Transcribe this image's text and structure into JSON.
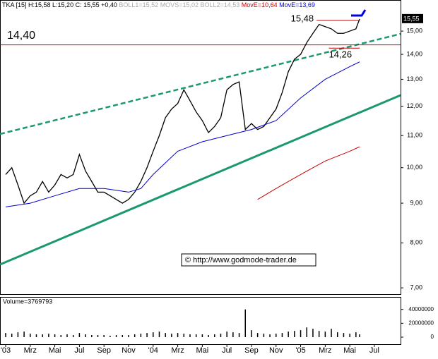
{
  "chart_data": {
    "type": "line",
    "header": {
      "symbol": "TKA [15] H:15,58 L:15,20 C: 15,55 +0,40",
      "boll": "BOLL1=15,52 MOVS=15,02 BOLL2=14,53",
      "move_red": "MovE=10,64",
      "move_blue": "MovE=13,69"
    },
    "last_price_label": "15,55",
    "watermark": "© http://www.godmode-trader.de",
    "log_scale": true,
    "xlim": [
      -0.46,
      32.13
    ],
    "xticks": [
      {
        "value": 0,
        "label": "'03"
      },
      {
        "value": 2,
        "label": "Mrz"
      },
      {
        "value": 4,
        "label": "Mai"
      },
      {
        "value": 6,
        "label": "Jul"
      },
      {
        "value": 8,
        "label": "Sep"
      },
      {
        "value": 10,
        "label": "Nov"
      },
      {
        "value": 12,
        "label": "'04"
      },
      {
        "value": 14,
        "label": "Mrz"
      },
      {
        "value": 16,
        "label": "Mai"
      },
      {
        "value": 18,
        "label": "Jul"
      },
      {
        "value": 20,
        "label": "Sep"
      },
      {
        "value": 22,
        "label": "Nov"
      },
      {
        "value": 24,
        "label": "'05"
      },
      {
        "value": 26,
        "label": "Mrz"
      },
      {
        "value": 28,
        "label": "Mai"
      },
      {
        "value": 30,
        "label": "Jul"
      }
    ],
    "ylim": [
      6.9,
      16.45
    ],
    "yticks": [
      {
        "value": 7,
        "label": "7,00"
      },
      {
        "value": 8,
        "label": "8,00"
      },
      {
        "value": 9,
        "label": "9,00"
      },
      {
        "value": 10,
        "label": "10,00"
      },
      {
        "value": 11,
        "label": "11,00"
      },
      {
        "value": 12,
        "label": "12,00"
      },
      {
        "value": 13,
        "label": "13,00"
      },
      {
        "value": 14,
        "label": "14,00"
      },
      {
        "value": 15,
        "label": "15,00"
      }
    ],
    "series": [
      {
        "color": "#000000",
        "x": [
          0,
          0.5,
          1,
          1.5,
          2,
          2.5,
          3,
          3.5,
          4,
          4.5,
          5,
          5.5,
          6,
          6.5,
          7,
          7.5,
          8,
          8.5,
          9,
          9.5,
          10,
          10.5,
          11,
          11.5,
          12,
          12.5,
          13,
          13.5,
          14,
          14.5,
          15,
          15.5,
          16,
          16.5,
          17,
          17.5,
          18,
          18.5,
          19,
          19.5,
          20,
          20.5,
          21,
          21.5,
          22,
          22.5,
          23,
          23.5,
          24,
          24.5,
          25,
          25.5,
          26,
          26.5,
          27,
          27.5,
          28,
          28.5,
          28.8
        ],
        "values": [
          9.8,
          10.0,
          9.5,
          9.0,
          9.2,
          9.3,
          9.6,
          9.3,
          9.5,
          9.8,
          9.7,
          9.8,
          10.4,
          9.9,
          9.6,
          9.3,
          9.3,
          9.2,
          9.1,
          9.0,
          9.1,
          9.3,
          9.6,
          10.0,
          10.5,
          11.0,
          11.6,
          11.9,
          12.1,
          12.6,
          12.2,
          11.8,
          11.5,
          11.1,
          11.3,
          11.6,
          12.6,
          12.8,
          12.9,
          11.2,
          11.4,
          11.2,
          11.3,
          11.6,
          11.9,
          12.5,
          13.3,
          13.8,
          14.0,
          14.5,
          14.9,
          15.3,
          15.2,
          15.1,
          14.9,
          14.9,
          15.0,
          15.1,
          15.55
        ]
      },
      {
        "color": "#0000cc",
        "x": [
          0,
          2,
          4,
          6,
          8,
          10,
          11,
          12,
          14,
          16,
          18,
          20,
          22,
          24,
          26,
          28,
          28.8
        ],
        "values": [
          8.9,
          9.0,
          9.2,
          9.4,
          9.4,
          9.3,
          9.4,
          9.8,
          10.5,
          10.8,
          11.0,
          11.2,
          11.5,
          12.3,
          13.0,
          13.5,
          13.69
        ]
      },
      {
        "color": "#cc0000",
        "x": [
          20.5,
          22,
          24,
          26,
          28,
          28.8
        ],
        "values": [
          9.1,
          9.4,
          9.8,
          10.2,
          10.5,
          10.64
        ]
      }
    ],
    "annotations": [
      {
        "text": "14,40",
        "value": 14.4
      },
      {
        "text": "15,48",
        "value": 15.48
      },
      {
        "text": "14,26",
        "value": 14.26
      }
    ],
    "volume": {
      "label": "Volume=3769793",
      "ylim": [
        0,
        57000000
      ],
      "yticks": [
        0,
        20000000,
        40000000
      ],
      "values": [
        6000000,
        5000000,
        7000000,
        8000000,
        5000000,
        4000000,
        4000000,
        5000000,
        4000000,
        3000000,
        4000000,
        3000000,
        6000000,
        4000000,
        3000000,
        3000000,
        3000000,
        2000000,
        3000000,
        3000000,
        3000000,
        4000000,
        5000000,
        6000000,
        7000000,
        8000000,
        6000000,
        5000000,
        6000000,
        5000000,
        4000000,
        4000000,
        4000000,
        3000000,
        4000000,
        5000000,
        8000000,
        7000000,
        6000000,
        40000000,
        10000000,
        6000000,
        5000000,
        4000000,
        5000000,
        6000000,
        8000000,
        9000000,
        10000000,
        14000000,
        12000000,
        9000000,
        8000000,
        12000000,
        7000000,
        6000000,
        5000000,
        7000000,
        4000000
      ]
    }
  }
}
